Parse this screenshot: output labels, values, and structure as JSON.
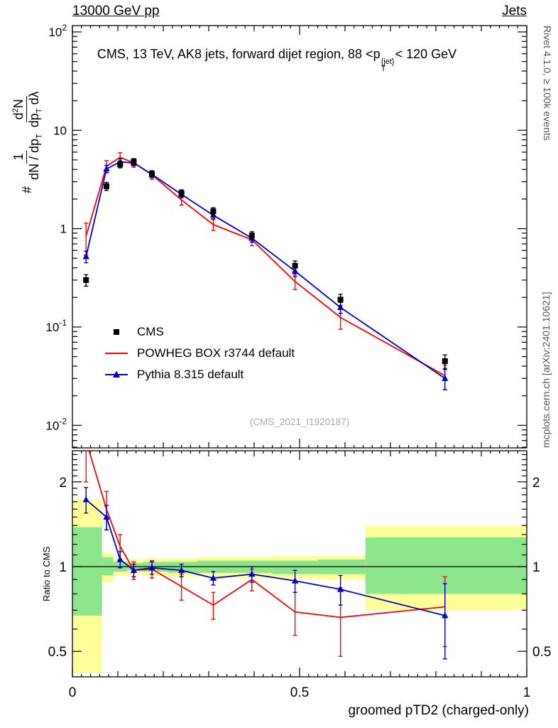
{
  "header": {
    "left": "13000 GeV pp",
    "right": "Jets"
  },
  "title": {
    "pre": "CMS, 13 TeV, AK8 jets, forward dijet region, 88 <p",
    "sup": "{jet}",
    "sub": "T",
    "post": "< 120 GeV"
  },
  "ylabel": {
    "prefix": "#",
    "f1num": "1",
    "f1den_a": "dN / dp",
    "f1den_sub": "T",
    "f2num_a": "d",
    "f2num_sup": "2",
    "f2num_b": "N",
    "f2den_a": "dp",
    "f2den_sub": "T",
    "f2den_b": " dλ"
  },
  "side_labels": {
    "rivet": "Rivet 4.1.0, ≥ 100k events",
    "mcplots": "mcplots.cern.ch [arXiv:2401.10621]"
  },
  "watermark": "(CMS_2021_I1920187)",
  "chart_data": {
    "type": "line",
    "title": "CMS, 13 TeV, AK8 jets, forward dijet region, 88 < pT{jet} < 120 GeV",
    "xlabel": "groomed pTD2 (charged-only)",
    "ylabel": "# 1/(dN/dpT) d2N/(dpT dlambda)",
    "xlim": [
      0,
      1
    ],
    "ylim": [
      0.0059,
      116
    ],
    "ylog": true,
    "grid": false,
    "legend_position": "middle-left",
    "xticks": {
      "major": [
        0,
        0.5,
        1
      ],
      "labels": [
        "0",
        "0.5",
        "1"
      ]
    },
    "ytick_exponents": [
      -2,
      -1,
      0,
      1,
      2
    ],
    "x": [
      0.03,
      0.075,
      0.105,
      0.135,
      0.175,
      0.24,
      0.31,
      0.395,
      0.49,
      0.59,
      0.82
    ],
    "series": [
      {
        "name": "CMS",
        "color": "#000000",
        "marker": "square",
        "line": false,
        "values": [
          0.3,
          2.7,
          4.5,
          4.8,
          3.6,
          2.3,
          1.5,
          0.85,
          0.42,
          0.19,
          0.045
        ],
        "yerr": [
          0.04,
          0.25,
          0.35,
          0.35,
          0.28,
          0.18,
          0.13,
          0.08,
          0.05,
          0.025,
          0.007
        ]
      },
      {
        "name": "POWHEG BOX r3744 default",
        "color": "#ff0000",
        "marker": "none",
        "line": true,
        "values": [
          0.84,
          4.32,
          5.31,
          4.66,
          3.53,
          1.96,
          1.1,
          0.77,
          0.29,
          0.125,
          0.032
        ],
        "yerr": [
          0.3,
          0.6,
          0.6,
          0.45,
          0.35,
          0.22,
          0.14,
          0.1,
          0.05,
          0.03,
          0.009
        ]
      },
      {
        "name": "Pythia 8.315 default",
        "color": "#0000cc",
        "marker": "triangle",
        "line": true,
        "values": [
          0.52,
          4.05,
          4.77,
          4.66,
          3.56,
          2.23,
          1.37,
          0.8,
          0.37,
          0.158,
          0.03
        ],
        "yerr": [
          0.07,
          0.35,
          0.35,
          0.3,
          0.25,
          0.17,
          0.11,
          0.07,
          0.045,
          0.02,
          0.007
        ]
      }
    ],
    "ratio": {
      "ylabel": "Ratio to CMS",
      "ylim": [
        0.406,
        2.58
      ],
      "ylog": true,
      "yticks": [
        0.5,
        1,
        2
      ],
      "band_colors": {
        "outer": "#ffff99",
        "inner": "#8ce68c"
      },
      "bands": [
        {
          "x0": 0.0,
          "x1": 0.065,
          "outer": [
            0.42,
            1.73
          ],
          "inner": [
            0.67,
            1.38
          ]
        },
        {
          "x0": 0.065,
          "x1": 0.09,
          "outer": [
            0.88,
            1.12
          ],
          "inner": [
            0.93,
            1.08
          ]
        },
        {
          "x0": 0.09,
          "x1": 0.12,
          "outer": [
            0.93,
            1.07
          ],
          "inner": [
            0.96,
            1.04
          ]
        },
        {
          "x0": 0.12,
          "x1": 0.155,
          "outer": [
            0.94,
            1.06
          ],
          "inner": [
            0.97,
            1.03
          ]
        },
        {
          "x0": 0.155,
          "x1": 0.21,
          "outer": [
            0.93,
            1.07
          ],
          "inner": [
            0.96,
            1.04
          ]
        },
        {
          "x0": 0.21,
          "x1": 0.275,
          "outer": [
            0.92,
            1.07
          ],
          "inner": [
            0.95,
            1.04
          ]
        },
        {
          "x0": 0.275,
          "x1": 0.35,
          "outer": [
            0.92,
            1.08
          ],
          "inner": [
            0.95,
            1.05
          ]
        },
        {
          "x0": 0.35,
          "x1": 0.44,
          "outer": [
            0.91,
            1.08
          ],
          "inner": [
            0.95,
            1.05
          ]
        },
        {
          "x0": 0.44,
          "x1": 0.54,
          "outer": [
            0.91,
            1.09
          ],
          "inner": [
            0.94,
            1.05
          ]
        },
        {
          "x0": 0.54,
          "x1": 0.645,
          "outer": [
            0.9,
            1.09
          ],
          "inner": [
            0.94,
            1.06
          ]
        },
        {
          "x0": 0.645,
          "x1": 1.0,
          "outer": [
            0.7,
            1.4
          ],
          "inner": [
            0.8,
            1.27
          ]
        }
      ],
      "series": [
        {
          "name": "POWHEG BOX r3744 default",
          "color": "#ff0000",
          "marker": "none",
          "line": true,
          "values": [
            2.8,
            1.6,
            1.18,
            0.97,
            0.98,
            0.85,
            0.73,
            0.9,
            0.69,
            0.66,
            0.72
          ],
          "yerr": [
            0.8,
            0.25,
            0.12,
            0.07,
            0.07,
            0.09,
            0.08,
            0.08,
            0.12,
            0.18,
            0.2
          ]
        },
        {
          "name": "Pythia 8.315 default",
          "color": "#0000cc",
          "marker": "triangle",
          "line": true,
          "values": [
            1.73,
            1.5,
            1.06,
            0.97,
            0.99,
            0.97,
            0.91,
            0.94,
            0.89,
            0.83,
            0.67
          ],
          "yerr": [
            0.18,
            0.15,
            0.07,
            0.05,
            0.05,
            0.05,
            0.05,
            0.06,
            0.08,
            0.1,
            0.2
          ]
        }
      ]
    }
  }
}
